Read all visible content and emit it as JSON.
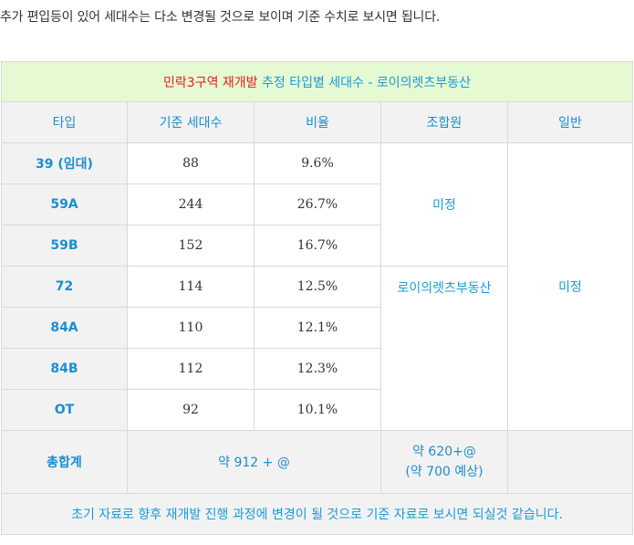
{
  "intro": "추가 편입등이 있어 세대수는 다소 변경될 것으로 보이며 기준 수치로 보시면 됩니다.",
  "table": {
    "title_red": "민락3구역 재개발",
    "title_rest": " 추정 타입별 세대수 - 로이의렛츠부동산",
    "headers": [
      "타입",
      "기준 세대수",
      "비율",
      "조합원",
      "일반"
    ],
    "rows": [
      {
        "type": "39 (임대)",
        "units": "88",
        "ratio": "9.6%"
      },
      {
        "type": "59A",
        "units": "244",
        "ratio": "26.7%"
      },
      {
        "type": "59B",
        "units": "152",
        "ratio": "16.7%"
      },
      {
        "type": "72",
        "units": "114",
        "ratio": "12.5%"
      },
      {
        "type": "84A",
        "units": "110",
        "ratio": "12.1%"
      },
      {
        "type": "84B",
        "units": "112",
        "ratio": "12.3%"
      },
      {
        "type": "OT",
        "units": "92",
        "ratio": "10.1%"
      }
    ],
    "member_note_1": "미정",
    "member_note_2": "로이의렛츠부동산",
    "general_note": "미정",
    "total": {
      "label": "총합계",
      "value": "약 912 + @",
      "member_line1": "약 620+@",
      "member_line2": "(약 700 예상)"
    },
    "footer": "초기 자료로 향후 재개발 진행 과정에 변경이 될 것으로 기준 자료로 보시면 되실것 같습니다."
  }
}
